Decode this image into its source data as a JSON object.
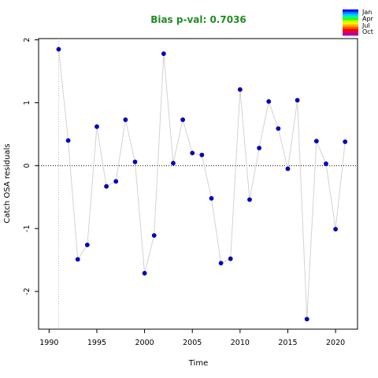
{
  "chart_data": {
    "type": "scatter",
    "title": "Bias p-val: 0.7036",
    "title_color": "#228B22",
    "xlabel": "Time",
    "ylabel": "Catch OSA residuals",
    "xlim": [
      1988.9,
      2022.3
    ],
    "ylim": [
      -2.6,
      2.02
    ],
    "xticks": [
      1990,
      1995,
      2000,
      2005,
      2010,
      2015,
      2020
    ],
    "yticks": [
      -2,
      -1,
      0,
      1,
      2
    ],
    "point_color": "#0000CD",
    "line_color": "#d3d3d3",
    "reference_line": 0,
    "x": [
      1991,
      1992,
      1993,
      1994,
      1995,
      1996,
      1997,
      1998,
      1999,
      2000,
      2001,
      2002,
      2003,
      2004,
      2005,
      2006,
      2007,
      2008,
      2009,
      2010,
      2011,
      2012,
      2013,
      2014,
      2015,
      2016,
      2017,
      2018,
      2019,
      2020,
      2021
    ],
    "y": [
      1.85,
      0.4,
      -1.49,
      -1.26,
      0.62,
      -0.33,
      -0.25,
      0.73,
      0.06,
      -1.71,
      -1.11,
      1.78,
      0.04,
      0.73,
      0.2,
      0.17,
      -0.52,
      -1.55,
      -1.48,
      1.21,
      -0.54,
      0.28,
      1.02,
      0.59,
      -0.05,
      1.04,
      -2.44,
      0.39,
      0.03,
      -1.01,
      0.38
    ],
    "legend": {
      "placement": "top-right",
      "labels": [
        "Jan",
        "Apr",
        "Jul",
        "Oct"
      ]
    }
  }
}
